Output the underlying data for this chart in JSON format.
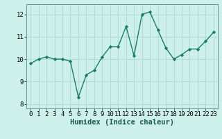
{
  "x": [
    0,
    1,
    2,
    3,
    4,
    5,
    6,
    7,
    8,
    9,
    10,
    11,
    12,
    13,
    14,
    15,
    16,
    17,
    18,
    19,
    20,
    21,
    22,
    23
  ],
  "y": [
    9.8,
    10.0,
    10.1,
    10.0,
    10.0,
    9.9,
    8.3,
    9.3,
    9.5,
    10.1,
    10.55,
    10.55,
    11.45,
    10.15,
    12.0,
    12.1,
    11.3,
    10.5,
    10.0,
    10.2,
    10.45,
    10.45,
    10.8,
    11.2
  ],
  "line_color": "#1a7a6e",
  "marker_style": "D",
  "marker_size": 2.2,
  "background_color": "#cef0ea",
  "grid_color": "#a8d8d0",
  "xlabel": "Humidex (Indice chaleur)",
  "xlim": [
    -0.5,
    23.5
  ],
  "ylim": [
    7.8,
    12.45
  ],
  "yticks": [
    8,
    9,
    10,
    11,
    12
  ],
  "xticks": [
    0,
    1,
    2,
    3,
    4,
    5,
    6,
    7,
    8,
    9,
    10,
    11,
    12,
    13,
    14,
    15,
    16,
    17,
    18,
    19,
    20,
    21,
    22,
    23
  ],
  "tick_fontsize": 6.5,
  "xlabel_fontsize": 7.5,
  "spine_color": "#5a9a8a",
  "line_width": 1.0
}
